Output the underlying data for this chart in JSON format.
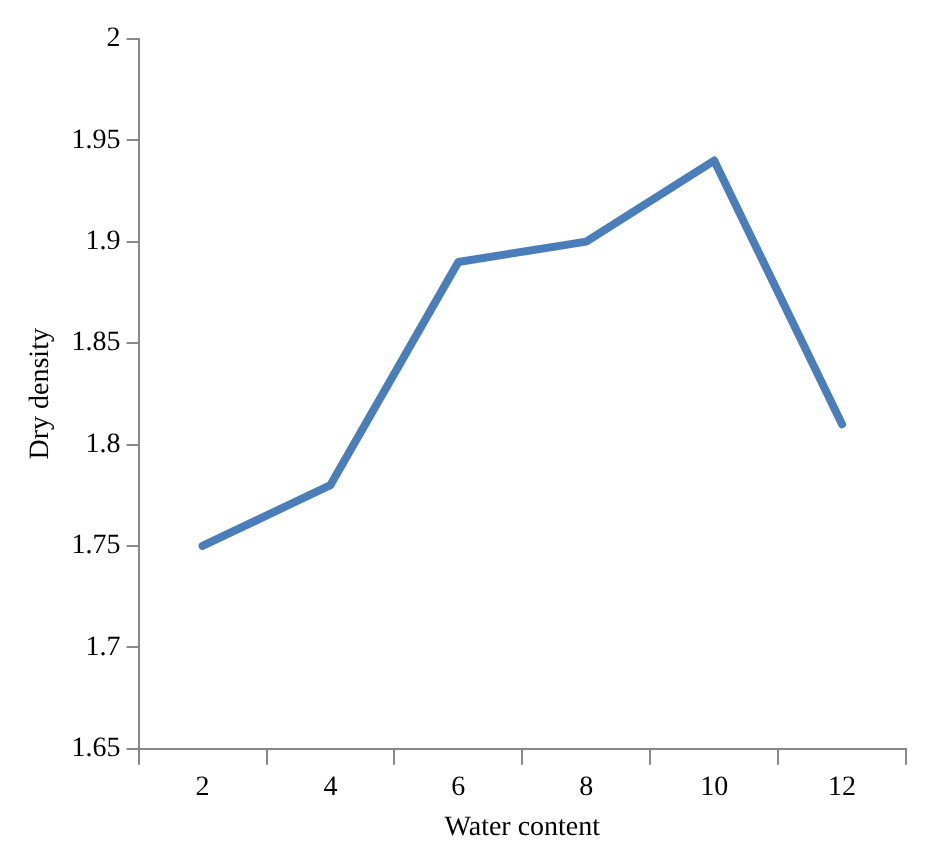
{
  "chart_data": {
    "type": "line",
    "xlabel": "Water content",
    "ylabel": "Dry density",
    "categories": [
      "2",
      "4",
      "6",
      "8",
      "10",
      "12"
    ],
    "series": [
      {
        "color": "#4a7ebb",
        "values": [
          1.75,
          1.78,
          1.89,
          1.9,
          1.94,
          1.81
        ]
      }
    ],
    "ylim": [
      1.65,
      2
    ],
    "yticks": [
      1.65,
      1.7,
      1.75,
      1.8,
      1.85,
      1.9,
      1.95,
      2
    ],
    "grid": false,
    "legend": false,
    "marker": "none",
    "line_style": "solid"
  }
}
